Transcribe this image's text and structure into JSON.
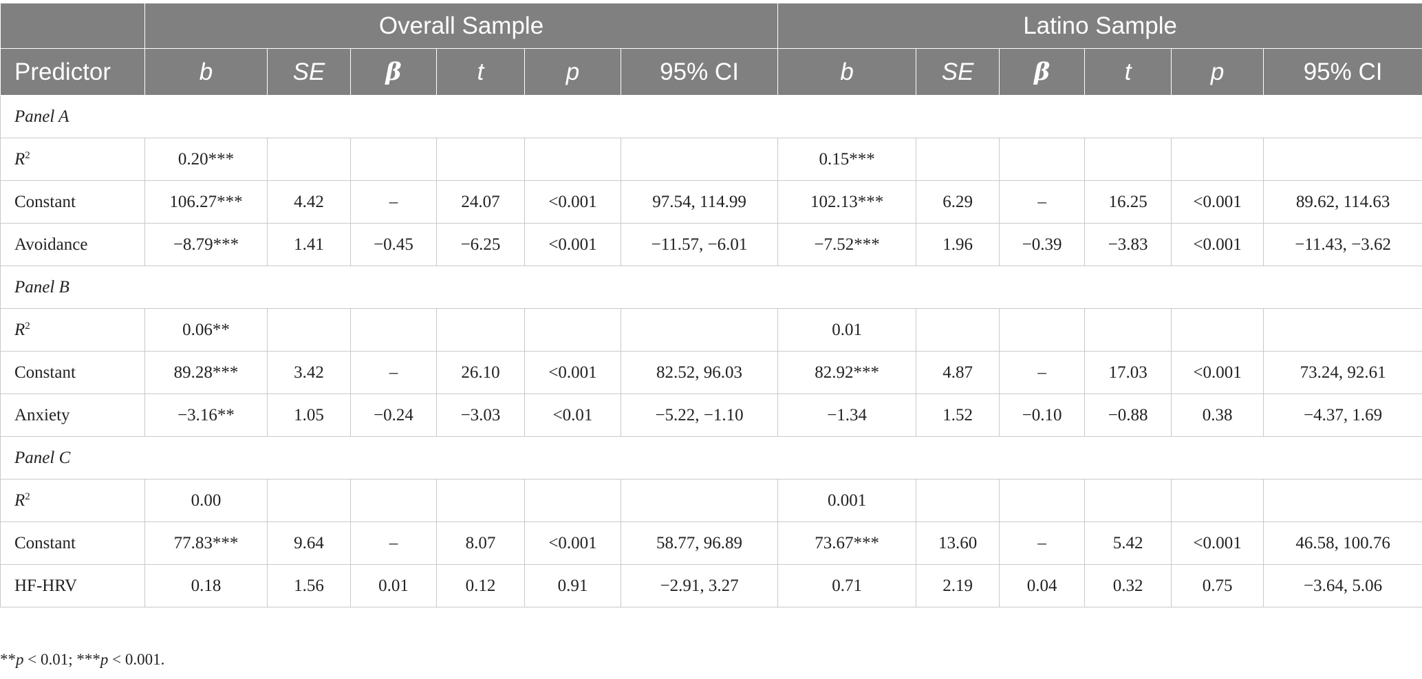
{
  "header": {
    "group_overall": "Overall Sample",
    "group_latino": "Latino Sample",
    "columns": [
      "Predictor",
      "b",
      "SE",
      "β",
      "t",
      "p",
      "95% CI",
      "b",
      "SE",
      "β",
      "t",
      "p",
      "95% CI"
    ]
  },
  "panels": [
    {
      "label": "Panel A",
      "rows": [
        {
          "predictor": "R",
          "sup": "2",
          "cells": [
            "0.20***",
            "",
            "",
            "",
            "",
            "",
            "0.15***",
            "",
            "",
            "",
            "",
            ""
          ]
        },
        {
          "predictor": "Constant",
          "cells": [
            "106.27***",
            "4.42",
            "–",
            "24.07",
            "<0.001",
            "97.54, 114.99",
            "102.13***",
            "6.29",
            "–",
            "16.25",
            "<0.001",
            "89.62, 114.63"
          ]
        },
        {
          "predictor": "Avoidance",
          "cells": [
            "−8.79***",
            "1.41",
            "−0.45",
            "−6.25",
            "<0.001",
            "−11.57, −6.01",
            "−7.52***",
            "1.96",
            "−0.39",
            "−3.83",
            "<0.001",
            "−11.43, −3.62"
          ]
        }
      ]
    },
    {
      "label": "Panel B",
      "rows": [
        {
          "predictor": "R",
          "sup": "2",
          "cells": [
            "0.06**",
            "",
            "",
            "",
            "",
            "",
            "0.01",
            "",
            "",
            "",
            "",
            ""
          ]
        },
        {
          "predictor": "Constant",
          "cells": [
            "89.28***",
            "3.42",
            "–",
            "26.10",
            "<0.001",
            "82.52, 96.03",
            "82.92***",
            "4.87",
            "–",
            "17.03",
            "<0.001",
            "73.24, 92.61"
          ]
        },
        {
          "predictor": "Anxiety",
          "cells": [
            "−3.16**",
            "1.05",
            "−0.24",
            "−3.03",
            "<0.01",
            "−5.22, −1.10",
            "−1.34",
            "1.52",
            "−0.10",
            "−0.88",
            "0.38",
            "−4.37, 1.69"
          ]
        }
      ]
    },
    {
      "label": "Panel C",
      "rows": [
        {
          "predictor": "R",
          "sup": "2",
          "cells": [
            "0.00",
            "",
            "",
            "",
            "",
            "",
            "0.001",
            "",
            "",
            "",
            "",
            ""
          ]
        },
        {
          "predictor": "Constant",
          "cells": [
            "77.83***",
            "9.64",
            "–",
            "8.07",
            "<0.001",
            "58.77, 96.89",
            "73.67***",
            "13.60",
            "–",
            "5.42",
            "<0.001",
            "46.58, 100.76"
          ]
        },
        {
          "predictor": "HF-HRV",
          "cells": [
            "0.18",
            "1.56",
            "0.01",
            "0.12",
            "0.91",
            "−2.91, 3.27",
            "0.71",
            "2.19",
            "0.04",
            "0.32",
            "0.75",
            "−3.64, 5.06"
          ]
        }
      ]
    }
  ],
  "footnote": {
    "part1_stars": "**",
    "part1_p": "p",
    "part1_rest": " < 0.01; ",
    "part2_stars": "***",
    "part2_p": "p",
    "part2_rest": " < 0.001."
  }
}
